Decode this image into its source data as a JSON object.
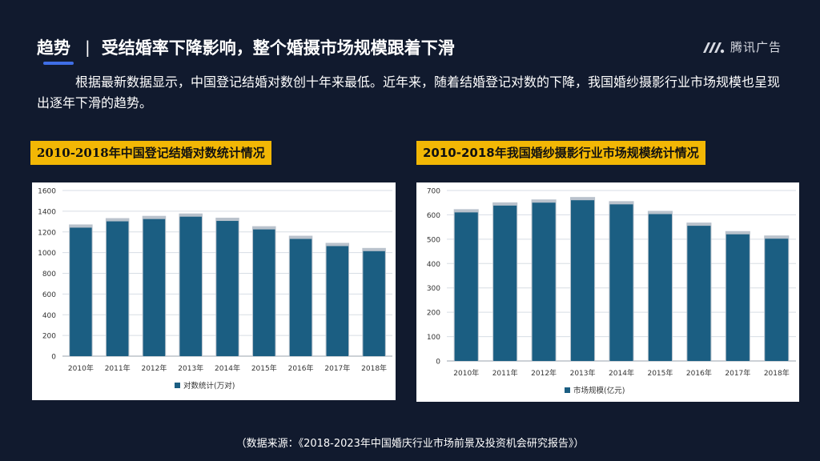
{
  "header": {
    "keyword": "趋势",
    "separator": "|",
    "title": "受结婚率下降影响，整个婚摄市场规模跟着下滑"
  },
  "logo": {
    "text": "腾讯广告",
    "icon": "tencent-ads-logo-icon"
  },
  "intro": "根据最新数据显示，中国登记结婚对数创十年来最低。近年来，随着结婚登记对数的下降，我国婚纱摄影行业市场规模也呈现出逐年下滑的趋势。",
  "source": "（数据来源：《2018-2023年中国婚庆行业市场前景及投资机会研究报告》）",
  "colors": {
    "bar": "#1b5e82",
    "bar_top": "#b9c2cc",
    "grid": "#d7dde4",
    "highlight": "#f2b705",
    "background": "#111a2e"
  },
  "chart_data": [
    {
      "type": "bar",
      "title": "2010-2018年中国登记结婚对数统计情况",
      "categories": [
        "2010年",
        "2011年",
        "2012年",
        "2013年",
        "2014年",
        "2015年",
        "2016年",
        "2017年",
        "2018年"
      ],
      "series": [
        {
          "name": "对数统计(万对)",
          "values": [
            1241,
            1302,
            1324,
            1347,
            1306,
            1224,
            1132,
            1063,
            1014
          ]
        }
      ],
      "ylim": [
        0,
        1600
      ],
      "yticks": [
        "0",
        "200",
        "400",
        "600",
        "800",
        "1000",
        "1200",
        "1400",
        "1600"
      ],
      "tick_values": [
        0,
        200,
        400,
        600,
        800,
        1000,
        1200,
        1400,
        1600
      ],
      "legend": "bottom",
      "grid": true
    },
    {
      "type": "bar",
      "title": "2010-2018年我国婚纱摄影行业市场规模统计情况",
      "categories": [
        "2010年",
        "2011年",
        "2012年",
        "2013年",
        "2014年",
        "2015年",
        "2016年",
        "2017年",
        "2018年"
      ],
      "series": [
        {
          "name": "市场规模(亿元)",
          "values": [
            610,
            638,
            650,
            660,
            643,
            603,
            555,
            520,
            502
          ]
        }
      ],
      "ylim": [
        0,
        700
      ],
      "yticks": [
        "0",
        "100",
        "200",
        "300",
        "400",
        "500",
        "600",
        "700"
      ],
      "tick_values": [
        0,
        100,
        200,
        300,
        400,
        500,
        600,
        700
      ],
      "legend": "bottom",
      "grid": true
    }
  ]
}
